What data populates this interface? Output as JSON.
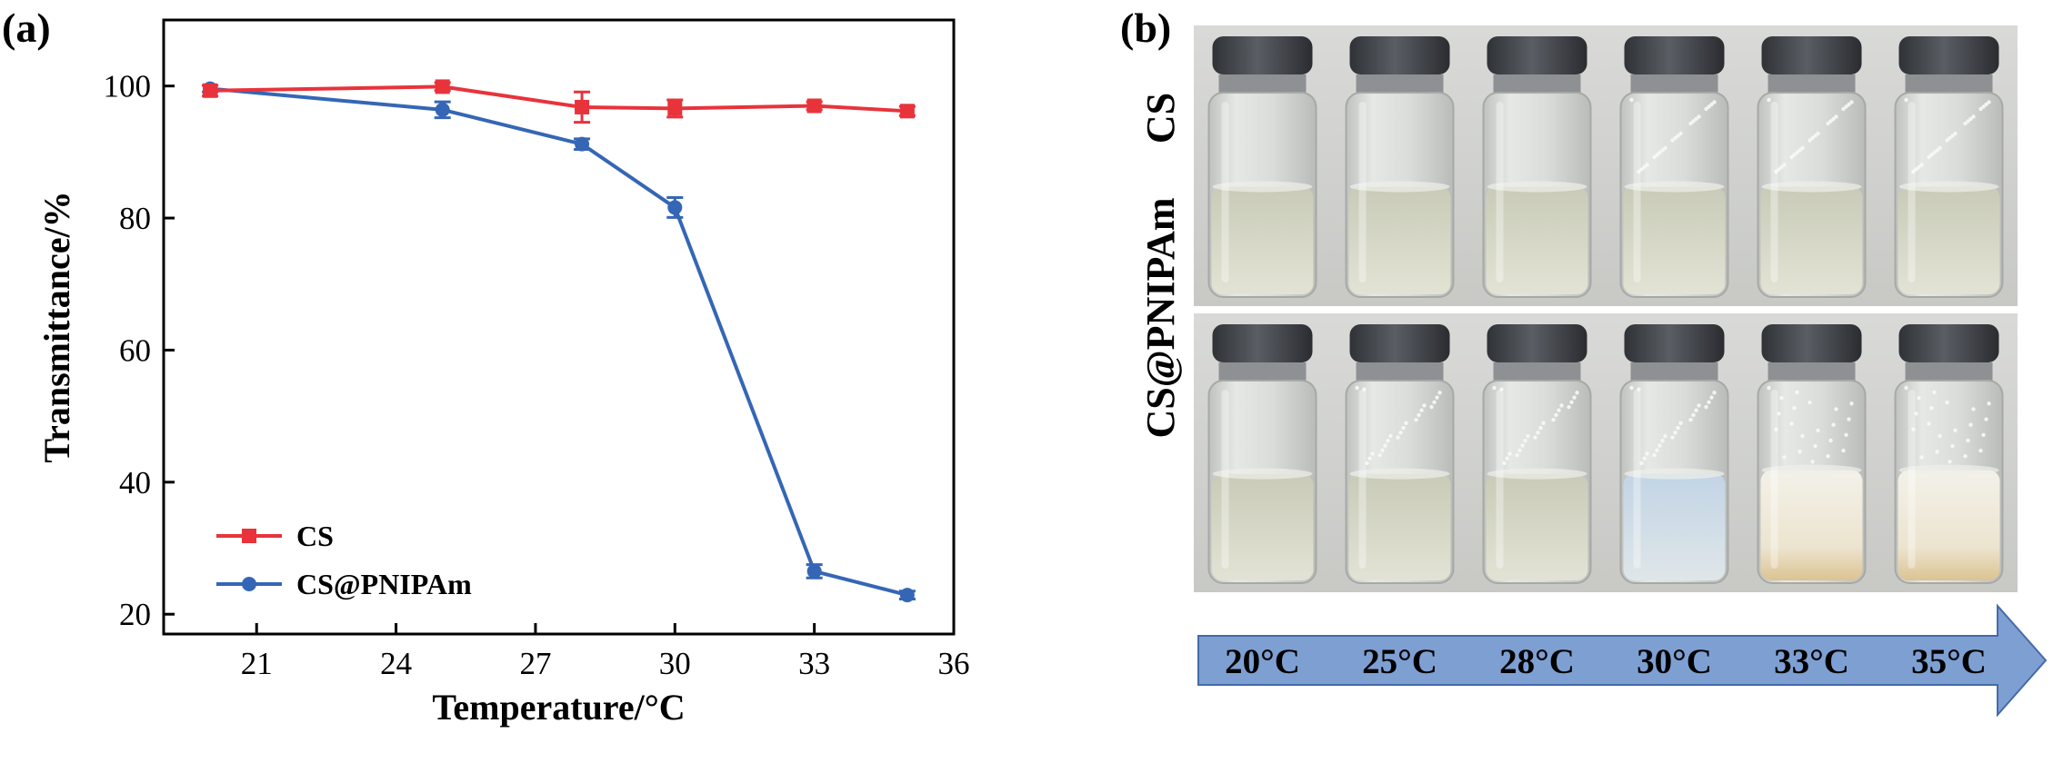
{
  "panel_a_label": "(a)",
  "panel_b_label": "(b)",
  "chart_data": {
    "type": "line",
    "title": "",
    "xlabel": "Temperature/°C",
    "ylabel": "Transmittance/%",
    "xlim": [
      19,
      36
    ],
    "ylim": [
      17,
      110
    ],
    "xticks": [
      21,
      24,
      27,
      30,
      33,
      36
    ],
    "yticks": [
      20,
      40,
      60,
      80,
      100
    ],
    "legend_position": "lower-left",
    "series": [
      {
        "name": "CS",
        "color": "#e8333b",
        "marker": "square",
        "x": [
          20,
          25,
          28,
          30,
          33,
          35
        ],
        "y": [
          99.3,
          99.9,
          96.8,
          96.6,
          97.0,
          96.2
        ],
        "err": [
          0.8,
          0.6,
          2.3,
          1.3,
          0.6,
          0.7
        ]
      },
      {
        "name": "CS@PNIPAm",
        "color": "#3566b6",
        "marker": "circle",
        "x": [
          20,
          25,
          28,
          30,
          33,
          35
        ],
        "y": [
          99.6,
          96.4,
          91.2,
          81.6,
          26.5,
          22.9
        ],
        "err": [
          0.5,
          1.2,
          0.8,
          1.5,
          1.0,
          0.6
        ]
      }
    ]
  },
  "photo_panel": {
    "row_labels": [
      "CS",
      "CS@PNIPAm"
    ],
    "temperatures": [
      "20°C",
      "25°C",
      "28°C",
      "30°C",
      "33°C",
      "35°C"
    ],
    "arrow_color": "#7e9fd2"
  }
}
